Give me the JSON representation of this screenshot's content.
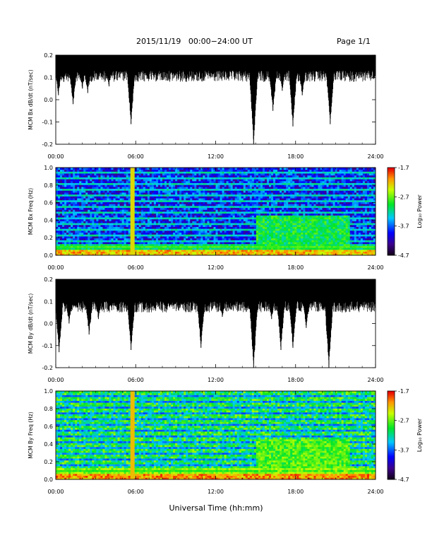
{
  "header": {
    "date_range": "2015/11/19   00:00−24:00 UT",
    "page": "Page 1/1"
  },
  "footer": {
    "xlabel": "Universal Time (hh:mm)"
  },
  "chart_data": [
    {
      "type": "line",
      "ylabel": "MCM Bx dB/dt (nT/sec)",
      "xlabel": "Universal Time (hh:mm)",
      "xlim": [
        0,
        24
      ],
      "ylim": [
        -0.2,
        0.2
      ],
      "xticks": [
        "00:00",
        "06:00",
        "12:00",
        "18:00",
        "24:00"
      ],
      "yticks": [
        "-0.2",
        "-0.1",
        "0.0",
        "0.1",
        "0.2"
      ],
      "color": "#000000",
      "baseline": 0.15,
      "spikes": [
        {
          "x": 0.2,
          "y": 0.02
        },
        {
          "x": 0.6,
          "y": 0.08
        },
        {
          "x": 1.3,
          "y": -0.02
        },
        {
          "x": 2.0,
          "y": 0.05
        },
        {
          "x": 2.4,
          "y": 0.03
        },
        {
          "x": 3.2,
          "y": 0.1
        },
        {
          "x": 4.0,
          "y": 0.06
        },
        {
          "x": 5.65,
          "y": -0.11
        },
        {
          "x": 7.4,
          "y": 0.1
        },
        {
          "x": 9.8,
          "y": 0.08
        },
        {
          "x": 11.0,
          "y": 0.12
        },
        {
          "x": 14.85,
          "y": -0.2
        },
        {
          "x": 16.3,
          "y": -0.05
        },
        {
          "x": 17.0,
          "y": 0.04
        },
        {
          "x": 17.8,
          "y": -0.12
        },
        {
          "x": 18.5,
          "y": 0.02
        },
        {
          "x": 20.6,
          "y": -0.11
        },
        {
          "x": 22.0,
          "y": 0.1
        },
        {
          "x": 23.3,
          "y": 0.11
        }
      ]
    },
    {
      "type": "heatmap",
      "ylabel": "MCM Bx Freq (Hz)",
      "xlim": [
        0,
        24
      ],
      "ylim": [
        0,
        1.0
      ],
      "xticks": [
        "00:00",
        "06:00",
        "12:00",
        "18:00",
        "24:00"
      ],
      "yticks": [
        "0.0",
        "0.2",
        "0.4",
        "0.6",
        "0.8",
        "1.0"
      ],
      "colorbar": {
        "label": "Log₁₀ Power",
        "ticks": [
          "-1.7",
          "-2.7",
          "-3.7",
          "-4.7"
        ],
        "range": [
          -4.7,
          -1.7
        ]
      },
      "description_levels": {
        "background": -3.9,
        "low_freq_band": -2.3,
        "harmonic_lines": -3.3,
        "afternoon_enhancement": -3.0
      }
    },
    {
      "type": "line",
      "ylabel": "MCM By dB/dt (nT/sec)",
      "xlabel": "Universal Time (hh:mm)",
      "xlim": [
        0,
        24
      ],
      "ylim": [
        -0.2,
        0.2
      ],
      "xticks": [
        "00:00",
        "06:00",
        "12:00",
        "18:00",
        "24:00"
      ],
      "yticks": [
        "-0.2",
        "-0.1",
        "0.0",
        "0.1",
        "0.2"
      ],
      "color": "#000000",
      "baseline": 0.12,
      "spikes": [
        {
          "x": 0.25,
          "y": -0.13
        },
        {
          "x": 1.0,
          "y": 0.0
        },
        {
          "x": 2.5,
          "y": -0.05
        },
        {
          "x": 3.2,
          "y": 0.02
        },
        {
          "x": 4.2,
          "y": 0.06
        },
        {
          "x": 5.65,
          "y": -0.12
        },
        {
          "x": 7.0,
          "y": 0.05
        },
        {
          "x": 8.5,
          "y": 0.08
        },
        {
          "x": 10.9,
          "y": -0.11
        },
        {
          "x": 12.5,
          "y": 0.03
        },
        {
          "x": 14.85,
          "y": -0.2
        },
        {
          "x": 16.2,
          "y": 0.02
        },
        {
          "x": 16.9,
          "y": -0.12
        },
        {
          "x": 17.8,
          "y": -0.11
        },
        {
          "x": 18.8,
          "y": -0.02
        },
        {
          "x": 20.5,
          "y": -0.2
        },
        {
          "x": 21.5,
          "y": 0.05
        },
        {
          "x": 23.3,
          "y": 0.09
        }
      ]
    },
    {
      "type": "heatmap",
      "ylabel": "MCM By Freq (Hz)",
      "xlim": [
        0,
        24
      ],
      "ylim": [
        0,
        1.0
      ],
      "xticks": [
        "00:00",
        "06:00",
        "12:00",
        "18:00",
        "24:00"
      ],
      "yticks": [
        "0.0",
        "0.2",
        "0.4",
        "0.6",
        "0.8",
        "1.0"
      ],
      "colorbar": {
        "label": "Log₁₀ Power",
        "ticks": [
          "-1.7",
          "-2.7",
          "-3.7",
          "-4.7"
        ],
        "range": [
          -4.7,
          -1.7
        ]
      },
      "description_levels": {
        "background": -3.0,
        "low_freq_band": -2.2,
        "harmonic_lines": -3.6,
        "afternoon_enhancement": -2.8
      }
    }
  ]
}
